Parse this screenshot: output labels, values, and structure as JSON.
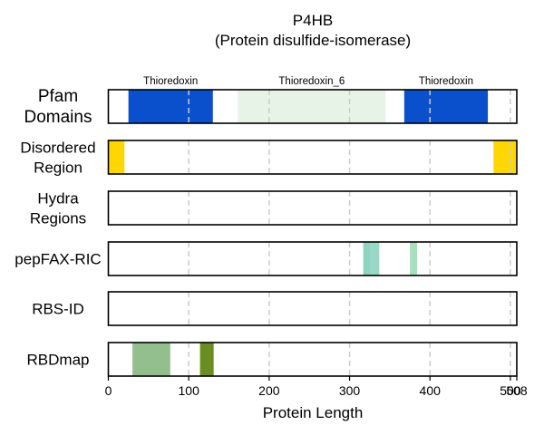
{
  "chart_data": {
    "type": "feature-track",
    "title": "P4HB",
    "subtitle": "(Protein disulfide-isomerase)",
    "xlabel": "Protein Length",
    "xlim": [
      0,
      508
    ],
    "xticks": [
      0,
      100,
      200,
      300,
      400,
      500,
      508
    ],
    "xtick_labels": [
      "0",
      "100",
      "200",
      "300",
      "400",
      "500",
      "508"
    ],
    "gridlines": [
      100,
      200,
      300,
      400,
      500
    ],
    "tracks": [
      {
        "label": [
          "Pfam",
          "Domains"
        ],
        "features": [
          {
            "start": 25,
            "end": 130,
            "color": "#0a4fcc",
            "label": "Thioredoxin"
          },
          {
            "start": 161,
            "end": 345,
            "color": "#e8f3e8",
            "label": "Thioredoxin_6"
          },
          {
            "start": 368,
            "end": 472,
            "color": "#0a4fcc",
            "label": "Thioredoxin"
          }
        ]
      },
      {
        "label": [
          "Disordered",
          "Region"
        ],
        "features": [
          {
            "start": 0,
            "end": 20,
            "color": "#ffd700"
          },
          {
            "start": 479,
            "end": 508,
            "color": "#ffd700"
          }
        ]
      },
      {
        "label": [
          "Hydra",
          "Regions"
        ],
        "features": []
      },
      {
        "label": [
          "pepFAX-RIC"
        ],
        "features": [
          {
            "start": 317,
            "end": 326,
            "color": "#8fd3c0"
          },
          {
            "start": 326,
            "end": 337,
            "color": "#98d8c4"
          },
          {
            "start": 375,
            "end": 384,
            "color": "#a8e0bc"
          }
        ]
      },
      {
        "label": [
          "RBS-ID"
        ],
        "features": []
      },
      {
        "label": [
          "RBDmap"
        ],
        "features": [
          {
            "start": 30,
            "end": 77,
            "color": "#93bf8f"
          },
          {
            "start": 114,
            "end": 131,
            "color": "#6b8e23"
          }
        ]
      }
    ]
  }
}
